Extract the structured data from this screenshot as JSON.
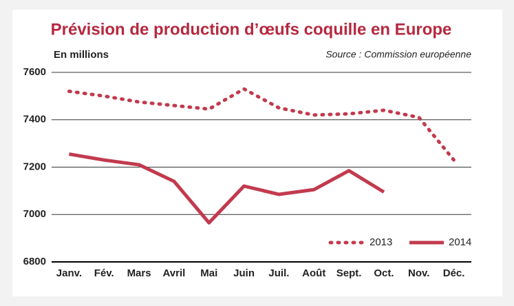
{
  "chart_data": {
    "type": "line",
    "title": "Prévision de production d’œufs coquille en Europe",
    "y_label": "En millions",
    "source": "Source : Commission européenne",
    "categories": [
      "Janv.",
      "Fév.",
      "Mars",
      "Avril",
      "Mai",
      "Juin",
      "Juil.",
      "Août",
      "Sept.",
      "Oct.",
      "Nov.",
      "Déc."
    ],
    "series": [
      {
        "name": "2013",
        "color": "#c23a4e",
        "line_style": "dotted",
        "values": [
          7520,
          7500,
          7475,
          7460,
          7445,
          7530,
          7450,
          7420,
          7425,
          7440,
          7410,
          7230
        ]
      },
      {
        "name": "2014",
        "color": "#c23a4e",
        "line_style": "solid",
        "values": [
          7255,
          7230,
          7210,
          7140,
          6965,
          7120,
          7085,
          7105,
          7185,
          7095,
          null,
          null
        ]
      }
    ],
    "ylim": [
      6800,
      7600
    ],
    "yticks": [
      6800,
      7000,
      7200,
      7400,
      7600
    ],
    "grid": true,
    "legend": "lower right"
  }
}
